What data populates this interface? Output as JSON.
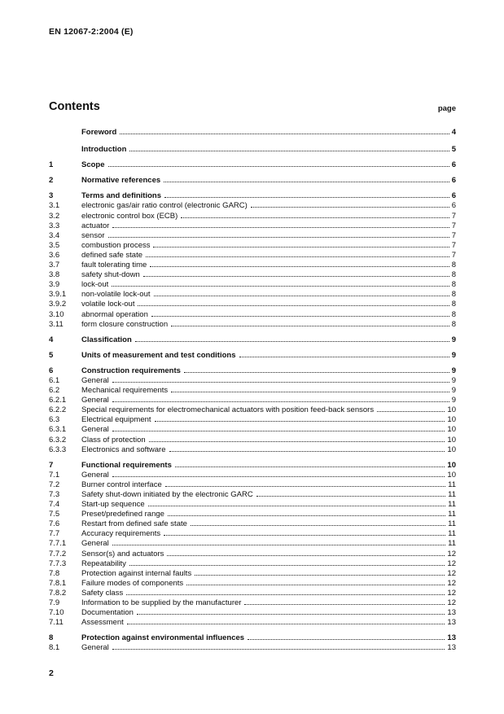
{
  "page": {
    "header": "EN 12067-2:2004 (E)",
    "footer_page_number": "2"
  },
  "contents": {
    "title": "Contents",
    "page_label": "page",
    "entries": [
      {
        "num": "",
        "title": "Foreword",
        "page": "4",
        "level": "front"
      },
      {
        "num": "",
        "title": "Introduction",
        "page": "5",
        "level": "front"
      },
      {
        "num": "1",
        "title": "Scope",
        "page": "6",
        "level": "chapter"
      },
      {
        "num": "2",
        "title": "Normative references",
        "page": "6",
        "level": "chapter"
      },
      {
        "num": "3",
        "title": "Terms and definitions",
        "page": "6",
        "level": "chapter"
      },
      {
        "num": "3.1",
        "title": "electronic gas/air ratio control (electronic GARC)",
        "page": "6",
        "level": "sub"
      },
      {
        "num": "3.2",
        "title": "electronic control box (ECB)",
        "page": "7",
        "level": "sub"
      },
      {
        "num": "3.3",
        "title": "actuator",
        "page": "7",
        "level": "sub"
      },
      {
        "num": "3.4",
        "title": "sensor",
        "page": "7",
        "level": "sub"
      },
      {
        "num": "3.5",
        "title": "combustion process",
        "page": "7",
        "level": "sub"
      },
      {
        "num": "3.6",
        "title": "defined safe state",
        "page": "7",
        "level": "sub"
      },
      {
        "num": "3.7",
        "title": "fault tolerating time",
        "page": "8",
        "level": "sub"
      },
      {
        "num": "3.8",
        "title": "safety shut-down",
        "page": "8",
        "level": "sub"
      },
      {
        "num": "3.9",
        "title": "lock-out",
        "page": "8",
        "level": "sub"
      },
      {
        "num": "3.9.1",
        "title": "non-volatile lock-out",
        "page": "8",
        "level": "sub"
      },
      {
        "num": "3.9.2",
        "title": "volatile lock-out",
        "page": "8",
        "level": "sub"
      },
      {
        "num": "3.10",
        "title": "abnormal operation",
        "page": "8",
        "level": "sub"
      },
      {
        "num": "3.11",
        "title": "form closure construction",
        "page": "8",
        "level": "sub"
      },
      {
        "num": "4",
        "title": "Classification",
        "page": "9",
        "level": "chapter"
      },
      {
        "num": "5",
        "title": "Units of measurement and test conditions",
        "page": "9",
        "level": "chapter"
      },
      {
        "num": "6",
        "title": "Construction requirements",
        "page": "9",
        "level": "chapter"
      },
      {
        "num": "6.1",
        "title": "General",
        "page": "9",
        "level": "sub"
      },
      {
        "num": "6.2",
        "title": "Mechanical requirements",
        "page": "9",
        "level": "sub"
      },
      {
        "num": "6.2.1",
        "title": "General",
        "page": "9",
        "level": "sub"
      },
      {
        "num": "6.2.2",
        "title": "Special requirements for electromechanical actuators with position feed-back sensors",
        "page": "10",
        "level": "sub"
      },
      {
        "num": "6.3",
        "title": "Electrical equipment",
        "page": "10",
        "level": "sub"
      },
      {
        "num": "6.3.1",
        "title": "General",
        "page": "10",
        "level": "sub"
      },
      {
        "num": "6.3.2",
        "title": "Class of protection",
        "page": "10",
        "level": "sub"
      },
      {
        "num": "6.3.3",
        "title": "Electronics and software",
        "page": "10",
        "level": "sub"
      },
      {
        "num": "7",
        "title": "Functional requirements",
        "page": "10",
        "level": "chapter"
      },
      {
        "num": "7.1",
        "title": "General",
        "page": "10",
        "level": "sub"
      },
      {
        "num": "7.2",
        "title": "Burner control interface",
        "page": "11",
        "level": "sub"
      },
      {
        "num": "7.3",
        "title": "Safety shut-down initiated by the electronic GARC",
        "page": "11",
        "level": "sub"
      },
      {
        "num": "7.4",
        "title": "Start-up sequence",
        "page": "11",
        "level": "sub"
      },
      {
        "num": "7.5",
        "title": "Preset/predefined range",
        "page": "11",
        "level": "sub"
      },
      {
        "num": "7.6",
        "title": "Restart from defined safe state",
        "page": "11",
        "level": "sub"
      },
      {
        "num": "7.7",
        "title": "Accuracy requirements",
        "page": "11",
        "level": "sub"
      },
      {
        "num": "7.7.1",
        "title": "General",
        "page": "11",
        "level": "sub"
      },
      {
        "num": "7.7.2",
        "title": "Sensor(s) and actuators",
        "page": "12",
        "level": "sub"
      },
      {
        "num": "7.7.3",
        "title": "Repeatability",
        "page": "12",
        "level": "sub"
      },
      {
        "num": "7.8",
        "title": "Protection against internal faults",
        "page": "12",
        "level": "sub"
      },
      {
        "num": "7.8.1",
        "title": "Failure modes of components",
        "page": "12",
        "level": "sub"
      },
      {
        "num": "7.8.2",
        "title": "Safety class",
        "page": "12",
        "level": "sub"
      },
      {
        "num": "7.9",
        "title": "Information to be supplied by the manufacturer",
        "page": "12",
        "level": "sub"
      },
      {
        "num": "7.10",
        "title": "Documentation",
        "page": "13",
        "level": "sub"
      },
      {
        "num": "7.11",
        "title": "Assessment",
        "page": "13",
        "level": "sub"
      },
      {
        "num": "8",
        "title": "Protection against environmental influences",
        "page": "13",
        "level": "chapter"
      },
      {
        "num": "8.1",
        "title": "General",
        "page": "13",
        "level": "sub"
      }
    ]
  }
}
